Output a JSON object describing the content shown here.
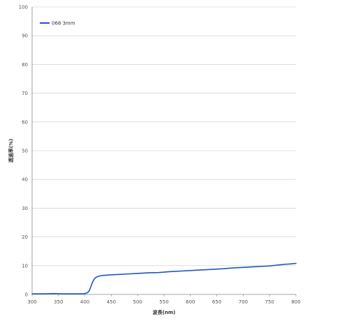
{
  "chart_data": {
    "type": "line",
    "title": "",
    "xlabel": "波長(nm)",
    "ylabel": "透過率(%)",
    "xlim": [
      300,
      800
    ],
    "ylim": [
      0,
      100
    ],
    "x_ticks": [
      300,
      350,
      400,
      450,
      500,
      550,
      600,
      650,
      700,
      750,
      800
    ],
    "y_ticks": [
      0,
      10,
      20,
      30,
      40,
      50,
      60,
      70,
      80,
      90,
      100
    ],
    "grid": true,
    "legend": "top-left",
    "series": [
      {
        "name": "068  3mm",
        "color": "#1f55c0",
        "x": [
          300,
          320,
          340,
          360,
          380,
          395,
          400,
          405,
          408,
          410,
          412,
          414,
          416,
          418,
          420,
          423,
          426,
          430,
          440,
          450,
          460,
          480,
          500,
          520,
          540,
          560,
          580,
          600,
          620,
          640,
          660,
          680,
          700,
          720,
          740,
          750,
          760,
          770,
          780,
          790,
          800
        ],
        "y": [
          0.2,
          0.2,
          0.3,
          0.2,
          0.2,
          0.2,
          0.3,
          0.6,
          1.2,
          2.0,
          3.0,
          4.0,
          4.8,
          5.4,
          5.8,
          6.1,
          6.3,
          6.5,
          6.7,
          6.8,
          6.9,
          7.1,
          7.3,
          7.5,
          7.6,
          7.9,
          8.1,
          8.3,
          8.5,
          8.7,
          8.9,
          9.2,
          9.4,
          9.6,
          9.8,
          9.9,
          10.1,
          10.3,
          10.5,
          10.6,
          10.8
        ]
      }
    ]
  }
}
